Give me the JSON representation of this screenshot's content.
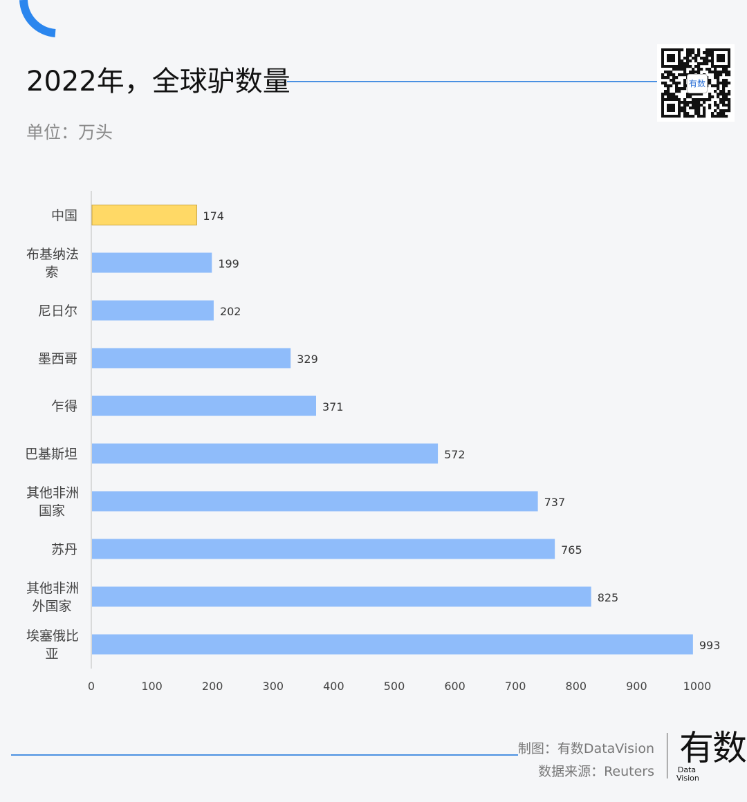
{
  "header": {
    "title": "2022年，全球驴数量",
    "unit": "单位：万头"
  },
  "qr": {
    "badge": "有数"
  },
  "colors": {
    "accent": "#4a90e2",
    "bar": "#8fbcfa",
    "highlight": "#ffd966",
    "highlight_border": "#c9a441",
    "axis": "#d0d0d0"
  },
  "chart_data": {
    "type": "bar",
    "orientation": "horizontal",
    "title": "2022年，全球驴数量",
    "unit": "单位：万头",
    "categories": [
      "中国",
      "布基纳法索",
      "尼日尔",
      "墨西哥",
      "乍得",
      "巴基斯坦",
      "其他非洲国家",
      "苏丹",
      "其他非洲外国家",
      "埃塞俄比亚"
    ],
    "label_lines": [
      [
        "中国"
      ],
      [
        "布基纳法",
        "索"
      ],
      [
        "尼日尔"
      ],
      [
        "墨西哥"
      ],
      [
        "乍得"
      ],
      [
        "巴基斯坦"
      ],
      [
        "其他非洲",
        "国家"
      ],
      [
        "苏丹"
      ],
      [
        "其他非洲",
        "外国家"
      ],
      [
        "埃塞俄比",
        "亚"
      ]
    ],
    "values": [
      174,
      199,
      202,
      329,
      371,
      572,
      737,
      765,
      825,
      993
    ],
    "highlight": [
      "中国"
    ],
    "xlim": [
      0,
      1000
    ],
    "xticks": [
      0,
      100,
      200,
      300,
      400,
      500,
      600,
      700,
      800,
      900,
      1000
    ],
    "grid": false,
    "data_labels": true
  },
  "footer": {
    "credit": "制图：有数DataVision",
    "source": "数据来源：Reuters",
    "logo_mark": "有数",
    "logo_sub_1": "Data",
    "logo_sub_2": "Vision"
  }
}
